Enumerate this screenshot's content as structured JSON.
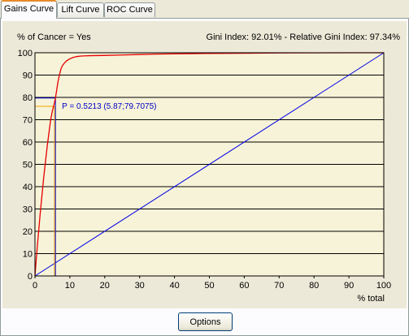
{
  "tabs": [
    {
      "label": "Gains Curve",
      "active": true
    },
    {
      "label": "Lift Curve",
      "active": false
    },
    {
      "label": "ROC Curve",
      "active": false
    }
  ],
  "chart": {
    "target_label": "% of Cancer = Yes",
    "gini_text": "Gini Index: 92.01% - Relative Gini Index: 97.34%",
    "annotation": "P = 0.5213 (5.87;79.7075)",
    "xlabel": "% total"
  },
  "chart_data": {
    "type": "line",
    "xlim": [
      0,
      100
    ],
    "ylim": [
      0,
      100
    ],
    "xticks": [
      0,
      10,
      20,
      30,
      40,
      50,
      60,
      70,
      80,
      90,
      100
    ],
    "yticks": [
      0,
      10,
      20,
      30,
      40,
      50,
      60,
      70,
      80,
      90,
      100
    ],
    "grid": "horizontal",
    "colors": {
      "model": "#e60000",
      "random": "#0000e6",
      "point_lines": "#0000c8",
      "secondary_lines": "#f0a000"
    },
    "model_curve": {
      "x": [
        0,
        0.5,
        1,
        1.5,
        2,
        2.5,
        3,
        3.5,
        4,
        4.5,
        5,
        5.5,
        5.87,
        6.2,
        6.6,
        7,
        7.5,
        8,
        8.5,
        9,
        10,
        11,
        12,
        13,
        14,
        16,
        20,
        25,
        30,
        35,
        40,
        45,
        50,
        60,
        70,
        80,
        90,
        100
      ],
      "y": [
        0,
        10,
        19,
        28,
        36,
        44,
        51,
        58,
        64,
        70,
        74,
        77,
        79.7,
        83,
        87,
        90,
        93,
        94.5,
        95.5,
        96.3,
        97.3,
        97.9,
        98.3,
        98.5,
        98.6,
        98.7,
        98.8,
        99,
        99.2,
        99.4,
        99.5,
        99.6,
        99.7,
        99.8,
        99.9,
        99.95,
        100,
        100
      ]
    },
    "random_line": {
      "x": [
        0,
        100
      ],
      "y": [
        0,
        100
      ]
    },
    "point": {
      "p": 0.5213,
      "x": 5.87,
      "y": 79.7075
    },
    "secondary_point": {
      "x": 5.6,
      "y": 76
    }
  },
  "footer": {
    "options_label": "Options"
  }
}
